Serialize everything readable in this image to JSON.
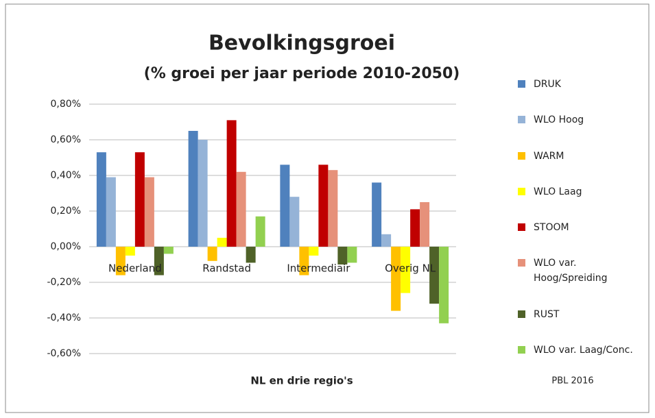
{
  "chart_data": {
    "type": "bar",
    "title": "Bevolkingsgroei",
    "subtitle": "(% groei per jaar periode 2010-2050)",
    "x_label": "NL en drie regio's",
    "annotation": "PBL 2016",
    "categories": [
      "Nederland",
      "Randstad",
      "Intermediair",
      "Overig NL"
    ],
    "series": [
      {
        "name": "DRUK",
        "color": "#4f81bd",
        "values": [
          0.53,
          0.65,
          0.46,
          0.36
        ]
      },
      {
        "name": "WLO Hoog",
        "color": "#95b3d7",
        "values": [
          0.39,
          0.6,
          0.28,
          0.07
        ]
      },
      {
        "name": "WARM",
        "color": "#ffc000",
        "values": [
          -0.16,
          -0.08,
          -0.16,
          -0.36
        ]
      },
      {
        "name": "WLO Laag",
        "color": "#ffff00",
        "values": [
          -0.05,
          0.05,
          -0.05,
          -0.26
        ]
      },
      {
        "name": "STOOM",
        "color": "#c00000",
        "values": [
          0.53,
          0.71,
          0.46,
          0.21
        ]
      },
      {
        "name": "WLO var. Hoog/Spreiding",
        "color": "#e6917a",
        "values": [
          0.39,
          0.42,
          0.43,
          0.25
        ]
      },
      {
        "name": "RUST",
        "color": "#4f6228",
        "values": [
          -0.16,
          -0.09,
          -0.1,
          -0.32
        ]
      },
      {
        "name": "WLO var. Laag/Conc.",
        "color": "#92d050",
        "values": [
          -0.04,
          0.17,
          -0.09,
          -0.43
        ]
      }
    ],
    "ylim": [
      -0.6,
      0.8
    ],
    "yticks": [
      {
        "value": -0.6,
        "label": "-0,60%"
      },
      {
        "value": -0.4,
        "label": "-0,40%"
      },
      {
        "value": -0.2,
        "label": "-0,20%"
      },
      {
        "value": 0,
        "label": "0,00%"
      },
      {
        "value": 0.2,
        "label": "0,20%"
      },
      {
        "value": 0.4,
        "label": "0,40%"
      },
      {
        "value": 0.6,
        "label": "0,60%"
      },
      {
        "value": 0.8,
        "label": "0,80%"
      }
    ],
    "grid": true,
    "legend": "right"
  }
}
